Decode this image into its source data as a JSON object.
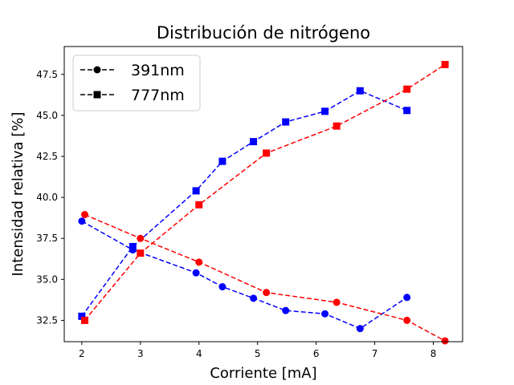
{
  "chart_data": {
    "type": "line",
    "title": "Distribución de nitrógeno",
    "xlabel": "Corriente [mA]",
    "ylabel": "Intensidad relativa [%]",
    "xlim": [
      1.7,
      8.5
    ],
    "ylim": [
      31.2,
      49.2
    ],
    "xticks": [
      "2",
      "3",
      "4",
      "5",
      "6",
      "7",
      "8"
    ],
    "yticks": [
      "32.5",
      "35.0",
      "37.5",
      "40.0",
      "42.5",
      "45.0",
      "47.5"
    ],
    "grid": false,
    "legend_position": "top-left",
    "legend": [
      {
        "label": "391nm",
        "marker": "circle",
        "style": "dashed",
        "color": "#000000"
      },
      {
        "label": "777nm",
        "marker": "square",
        "style": "dashed",
        "color": "#000000"
      }
    ],
    "series": [
      {
        "color": "#0000ff",
        "marker": "circle",
        "x": [
          2.0,
          2.87,
          3.95,
          4.4,
          4.93,
          5.48,
          6.15,
          6.75,
          7.55
        ],
        "y": [
          38.55,
          36.8,
          35.4,
          34.55,
          33.85,
          33.1,
          32.9,
          32.0,
          33.9
        ]
      },
      {
        "color": "#0000ff",
        "marker": "square",
        "x": [
          2.0,
          2.87,
          3.95,
          4.4,
          4.93,
          5.48,
          6.15,
          6.75,
          7.55
        ],
        "y": [
          32.75,
          37.0,
          40.4,
          42.2,
          43.4,
          44.6,
          45.25,
          46.5,
          45.3
        ]
      },
      {
        "color": "#ff0000",
        "marker": "circle",
        "x": [
          2.05,
          3.0,
          4.0,
          5.15,
          6.35,
          7.55,
          8.2
        ],
        "y": [
          38.95,
          37.5,
          36.05,
          34.2,
          33.6,
          32.5,
          31.25
        ]
      },
      {
        "color": "#ff0000",
        "marker": "square",
        "x": [
          2.05,
          3.0,
          4.0,
          5.15,
          6.35,
          7.55,
          8.2
        ],
        "y": [
          32.5,
          36.6,
          39.55,
          42.7,
          44.35,
          46.6,
          48.1
        ]
      }
    ]
  }
}
